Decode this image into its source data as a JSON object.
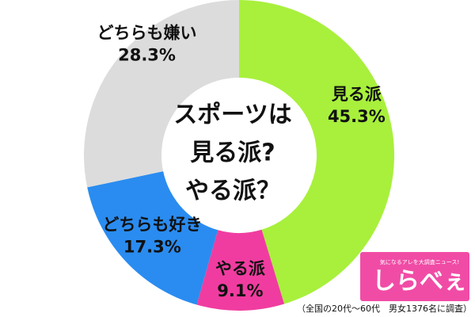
{
  "chart_data": {
    "type": "donut",
    "title_lines": [
      "スポーツは",
      "見る派?",
      "やる派？"
    ],
    "series": [
      {
        "name": "見る派",
        "color": "#a8f03c",
        "values": [
          45.3
        ],
        "value_labels": [
          "45.3%"
        ]
      },
      {
        "name": "やる派",
        "color": "#f03ca0",
        "values": [
          9.1
        ],
        "value_labels": [
          "9.1%"
        ]
      },
      {
        "name": "どちらも好き",
        "color": "#2a8cf0",
        "values": [
          17.3
        ],
        "value_labels": [
          "17.3%"
        ]
      },
      {
        "name": "どちらも嫌い",
        "color": "#dcdcdc",
        "values": [
          28.3
        ],
        "value_labels": [
          "28.3%"
        ]
      }
    ],
    "note": "（全国の20代〜60代　男女1376名に調査）",
    "logo": {
      "text": "しらべぇ",
      "tagline": "気になるアレを大調査ニュース!"
    }
  }
}
